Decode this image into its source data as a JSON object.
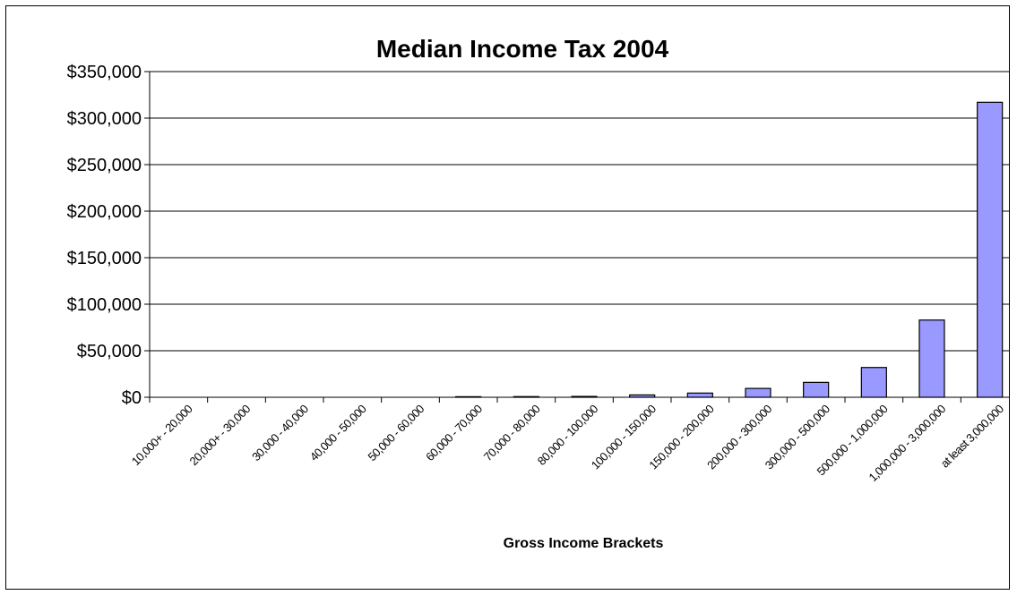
{
  "chart_data": {
    "type": "bar",
    "title": "Median Income Tax 2004",
    "xlabel": "Gross Income Brackets",
    "ylabel": "",
    "ylim": [
      0,
      350000
    ],
    "ytick_values": [
      0,
      50000,
      100000,
      150000,
      200000,
      250000,
      300000,
      350000
    ],
    "ytick_labels": [
      "$0",
      "$50,000",
      "$100,000",
      "$150,000",
      "$200,000",
      "$250,000",
      "$300,000",
      "$350,000"
    ],
    "grid": true,
    "legend": "none",
    "bar_color": "#9999ff",
    "categories": [
      "10,000+ - 20,000",
      "20,000+ - 30,000",
      "30,000 - 40,000",
      "40,000 - 50,000",
      "50,000 - 60,000",
      "60,000 - 70,000",
      "70,000 - 80,000",
      "80,000 - 100,000",
      "100,000 - 150,000",
      "150,000 - 200,000",
      "200,000 - 300,000",
      "300,000 - 500,000",
      "500,000 - 1,000,000",
      "1,000,000 - 3,000,000",
      "at least 3,000,000"
    ],
    "values": [
      0,
      0,
      0,
      0,
      0,
      600,
      700,
      900,
      2500,
      4500,
      9500,
      16000,
      32000,
      83000,
      317000
    ]
  }
}
